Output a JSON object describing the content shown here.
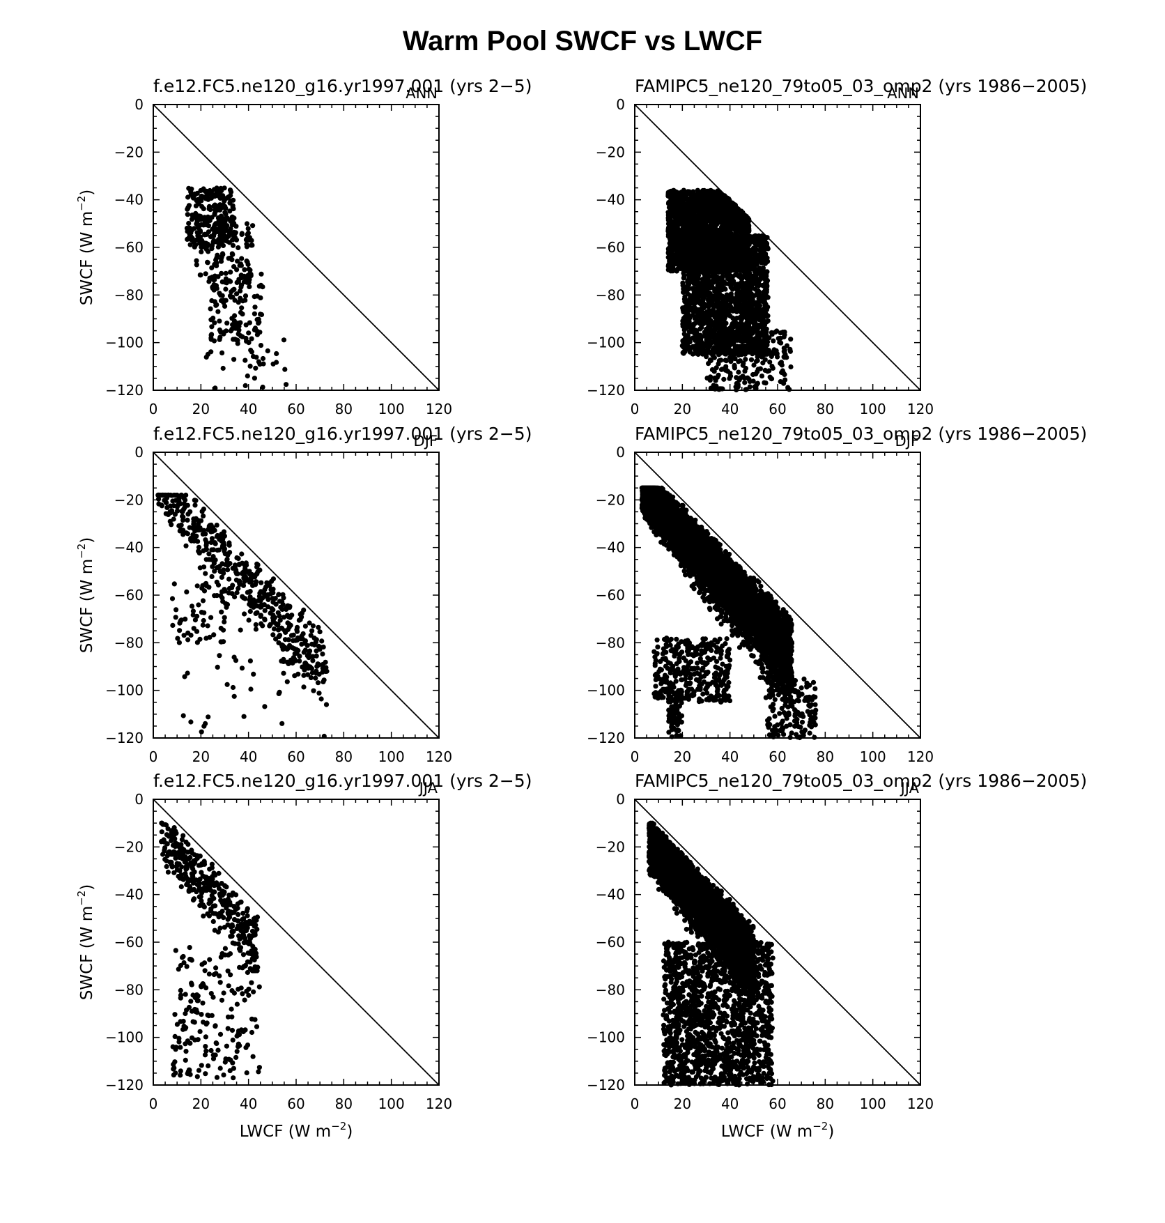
{
  "figure": {
    "title": "Warm Pool SWCF vs LWCF"
  },
  "common": {
    "xlabel": "LWCF (W m",
    "ylabel": "SWCF (W m",
    "unit_exponent": "−2",
    "xlim": [
      0,
      120
    ],
    "ylim": [
      -120,
      0
    ],
    "x_ticks": [
      "0",
      "20",
      "40",
      "60",
      "80",
      "100",
      "120"
    ],
    "y_ticks": [
      "0",
      "−20",
      "−40",
      "−60",
      "−80",
      "−100",
      "−120"
    ],
    "reference_line": "y = −x"
  },
  "chart_data": [
    {
      "type": "scatter",
      "title": "f.e12.FC5.ne120_g16.yr1997.001 (yrs 2−5)",
      "season": "ANN",
      "ylabel": "SWCF (W m−2)",
      "xlim": [
        0,
        120
      ],
      "ylim": [
        -120,
        0
      ],
      "clusters": [
        {
          "n": 240,
          "x": [
            14,
            34
          ],
          "y_offset_from_diagonal": [
            -8,
            28
          ],
          "y_range": [
            -60,
            -35
          ]
        },
        {
          "n": 110,
          "x": [
            18,
            42
          ],
          "y": [
            -75,
            -50
          ]
        },
        {
          "n": 120,
          "x": [
            24,
            46
          ],
          "y": [
            -100,
            -70
          ]
        },
        {
          "n": 35,
          "x": [
            22,
            58
          ],
          "y": [
            -120,
            -95
          ]
        }
      ]
    },
    {
      "type": "scatter",
      "title": "FAMIPC5_ne120_79to05_03_omp2 (yrs 1986−2005)",
      "season": "ANN",
      "xlim": [
        0,
        120
      ],
      "ylim": [
        -120,
        0
      ],
      "clusters": [
        {
          "n": 2200,
          "x": [
            14,
            48
          ],
          "y": [
            -70,
            -36
          ]
        },
        {
          "n": 1800,
          "x": [
            20,
            56
          ],
          "y": [
            -105,
            -55
          ]
        },
        {
          "n": 220,
          "x": [
            30,
            66
          ],
          "y": [
            -120,
            -95
          ]
        }
      ]
    },
    {
      "type": "scatter",
      "title": "f.e12.FC5.ne120_g16.yr1997.001 (yrs 2−5)",
      "season": "DJF",
      "ylabel": "SWCF (W m−2)",
      "xlim": [
        0,
        120
      ],
      "ylim": [
        -120,
        0
      ],
      "clusters": [
        {
          "n": 520,
          "x": [
            2,
            73
          ],
          "band_along_diagonal": true,
          "y": [
            -120,
            -18
          ]
        },
        {
          "n": 60,
          "x": [
            8,
            30
          ],
          "y": [
            -80,
            -55
          ]
        },
        {
          "n": 25,
          "x": [
            10,
            55
          ],
          "y": [
            -118,
            -85
          ]
        }
      ]
    },
    {
      "type": "scatter",
      "title": "FAMIPC5_ne120_79to05_03_omp2 (yrs 1986−2005)",
      "season": "DJF",
      "xlim": [
        0,
        120
      ],
      "ylim": [
        -120,
        0
      ],
      "clusters": [
        {
          "n": 4500,
          "x": [
            3,
            66
          ],
          "band_along_diagonal": true,
          "y": [
            -115,
            -15
          ]
        },
        {
          "n": 350,
          "x": [
            8,
            40
          ],
          "y": [
            -105,
            -78
          ]
        },
        {
          "n": 80,
          "x": [
            14,
            20
          ],
          "y": [
            -120,
            -100
          ]
        },
        {
          "n": 150,
          "x": [
            55,
            76
          ],
          "y": [
            -120,
            -95
          ]
        }
      ]
    },
    {
      "type": "scatter",
      "title": "f.e12.FC5.ne120_g16.yr1997.001 (yrs 2−5)",
      "season": "JJA",
      "ylabel": "SWCF (W m−2)",
      "xlabel": "LWCF (W m−2)",
      "xlim": [
        0,
        120
      ],
      "ylim": [
        -120,
        0
      ],
      "clusters": [
        {
          "n": 380,
          "x": [
            3,
            44
          ],
          "band_along_diagonal": true,
          "y": [
            -72,
            -10
          ]
        },
        {
          "n": 190,
          "x": [
            8,
            45
          ],
          "y": [
            -117,
            -62
          ]
        }
      ]
    },
    {
      "type": "scatter",
      "title": "FAMIPC5_ne120_79to05_03_omp2 (yrs 1986−2005)",
      "season": "JJA",
      "xlabel": "LWCF (W m−2)",
      "xlim": [
        0,
        120
      ],
      "ylim": [
        -120,
        0
      ],
      "clusters": [
        {
          "n": 3800,
          "x": [
            6,
            50
          ],
          "band_along_diagonal": true,
          "y": [
            -90,
            -10
          ]
        },
        {
          "n": 1500,
          "x": [
            12,
            58
          ],
          "y": [
            -120,
            -60
          ]
        }
      ]
    }
  ]
}
